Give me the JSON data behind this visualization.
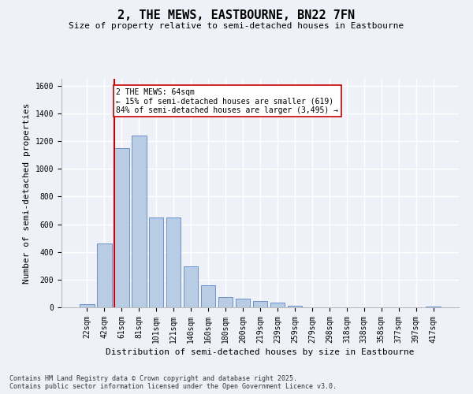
{
  "title": "2, THE MEWS, EASTBOURNE, BN22 7FN",
  "subtitle": "Size of property relative to semi-detached houses in Eastbourne",
  "xlabel": "Distribution of semi-detached houses by size in Eastbourne",
  "ylabel": "Number of semi-detached properties",
  "categories": [
    "22sqm",
    "42sqm",
    "61sqm",
    "81sqm",
    "101sqm",
    "121sqm",
    "140sqm",
    "160sqm",
    "180sqm",
    "200sqm",
    "219sqm",
    "239sqm",
    "259sqm",
    "279sqm",
    "298sqm",
    "318sqm",
    "338sqm",
    "358sqm",
    "377sqm",
    "397sqm",
    "417sqm"
  ],
  "values": [
    20,
    460,
    1150,
    1240,
    650,
    650,
    295,
    160,
    75,
    60,
    45,
    35,
    10,
    0,
    0,
    0,
    0,
    0,
    0,
    0,
    5
  ],
  "bar_color": "#b8cce4",
  "bar_edge_color": "#4472c4",
  "vline_color": "#cc0000",
  "vline_x_index": 2,
  "annotation_text": "2 THE MEWS: 64sqm\n← 15% of semi-detached houses are smaller (619)\n84% of semi-detached houses are larger (3,495) →",
  "annotation_box_facecolor": "#ffffff",
  "annotation_box_edgecolor": "#cc0000",
  "ylim": [
    0,
    1650
  ],
  "yticks": [
    0,
    200,
    400,
    600,
    800,
    1000,
    1200,
    1400,
    1600
  ],
  "footer_line1": "Contains HM Land Registry data © Crown copyright and database right 2025.",
  "footer_line2": "Contains public sector information licensed under the Open Government Licence v3.0.",
  "bg_color": "#eef2f8",
  "plot_bg_color": "#eef2f8",
  "grid_color": "#ffffff",
  "title_fontsize": 11,
  "subtitle_fontsize": 8,
  "axis_label_fontsize": 8,
  "tick_fontsize": 7,
  "footer_fontsize": 6
}
